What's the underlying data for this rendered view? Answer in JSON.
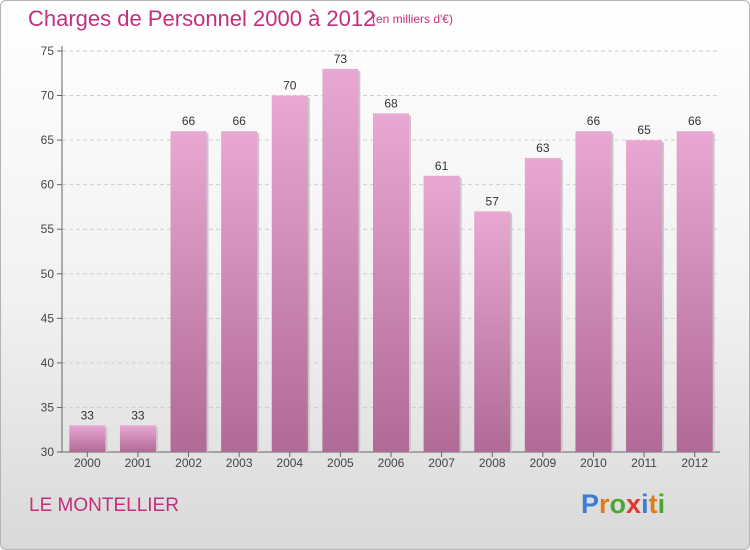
{
  "title": "Charges de Personnel 2000 à 2012",
  "subtitle": "(en milliers d'€)",
  "commune": "LE MONTELLIER",
  "logo": {
    "letters": [
      "P",
      "r",
      "o",
      "x",
      "i",
      "t",
      "i"
    ],
    "colors": [
      "#3a7fd5",
      "#e07b1a",
      "#4aa832",
      "#e23a2a",
      "#3a7fd5",
      "#e07b1a",
      "#4aa832"
    ]
  },
  "colors": {
    "bar_top": "#e8a8d2",
    "bar_bottom": "#b06a95",
    "accent": "#c0307c"
  },
  "chart_data": {
    "type": "bar",
    "title": "Charges de Personnel 2000 à 2012",
    "subtitle": "(en milliers d'€)",
    "categories": [
      "2000",
      "2001",
      "2002",
      "2003",
      "2004",
      "2005",
      "2006",
      "2007",
      "2008",
      "2009",
      "2010",
      "2011",
      "2012"
    ],
    "values": [
      33,
      33,
      66,
      66,
      70,
      73,
      68,
      61,
      57,
      63,
      66,
      65,
      66
    ],
    "xlabel": "",
    "ylabel": "",
    "ylim": [
      30,
      75
    ],
    "yticks": [
      30,
      35,
      40,
      45,
      50,
      55,
      60,
      65,
      70,
      75
    ],
    "grid": true,
    "legend": "none"
  }
}
